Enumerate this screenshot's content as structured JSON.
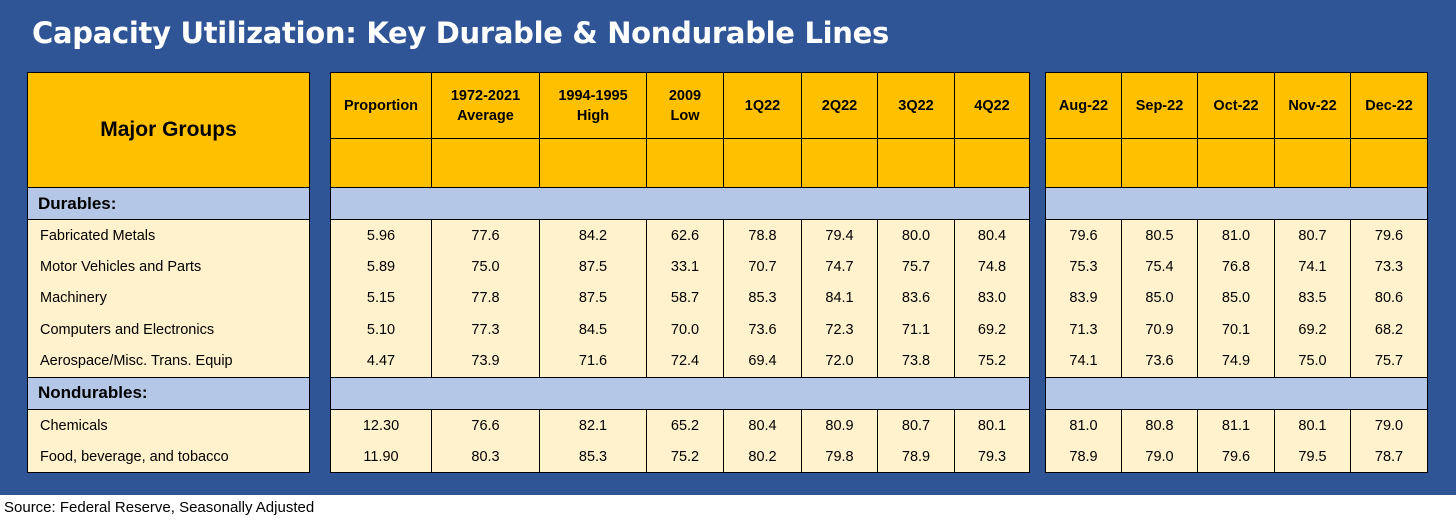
{
  "title": "Capacity Utilization: Key Durable & Nondurable Lines",
  "source": "Source: Federal Reserve, Seasonally Adjusted",
  "colors": {
    "panel_background": "#2F5597",
    "header_fill": "#FFC000",
    "section_fill": "#B4C7E7",
    "row_fill": "#FFF2CC"
  },
  "table": {
    "corner_label": "Major Groups",
    "columns": [
      {
        "line1": "Proportion",
        "line2": ""
      },
      {
        "line1": "1972-2021",
        "line2": "Average"
      },
      {
        "line1": "1994-1995",
        "line2": "High"
      },
      {
        "line1": "2009",
        "line2": "Low"
      },
      {
        "line1": "1Q22",
        "line2": ""
      },
      {
        "line1": "2Q22",
        "line2": ""
      },
      {
        "line1": "3Q22",
        "line2": ""
      },
      {
        "line1": "4Q22",
        "line2": ""
      },
      {
        "line1": "Aug-22",
        "line2": ""
      },
      {
        "line1": "Sep-22",
        "line2": ""
      },
      {
        "line1": "Oct-22",
        "line2": ""
      },
      {
        "line1": "Nov-22",
        "line2": ""
      },
      {
        "line1": "Dec-22",
        "line2": ""
      }
    ],
    "sections": [
      {
        "label": "Durables:",
        "rows": [
          {
            "name": "Fabricated Metals",
            "values": [
              "5.96",
              "77.6",
              "84.2",
              "62.6",
              "78.8",
              "79.4",
              "80.0",
              "80.4",
              "79.6",
              "80.5",
              "81.0",
              "80.7",
              "79.6"
            ]
          },
          {
            "name": "Motor Vehicles and Parts",
            "values": [
              "5.89",
              "75.0",
              "87.5",
              "33.1",
              "70.7",
              "74.7",
              "75.7",
              "74.8",
              "75.3",
              "75.4",
              "76.8",
              "74.1",
              "73.3"
            ]
          },
          {
            "name": "Machinery",
            "values": [
              "5.15",
              "77.8",
              "87.5",
              "58.7",
              "85.3",
              "84.1",
              "83.6",
              "83.0",
              "83.9",
              "85.0",
              "85.0",
              "83.5",
              "80.6"
            ]
          },
          {
            "name": "Computers and Electronics",
            "values": [
              "5.10",
              "77.3",
              "84.5",
              "70.0",
              "73.6",
              "72.3",
              "71.1",
              "69.2",
              "71.3",
              "70.9",
              "70.1",
              "69.2",
              "68.2"
            ]
          },
          {
            "name": "Aerospace/Misc. Trans. Equip",
            "values": [
              "4.47",
              "73.9",
              "71.6",
              "72.4",
              "69.4",
              "72.0",
              "73.8",
              "75.2",
              "74.1",
              "73.6",
              "74.9",
              "75.0",
              "75.7"
            ]
          }
        ]
      },
      {
        "label": "Nondurables:",
        "rows": [
          {
            "name": "Chemicals",
            "values": [
              "12.30",
              "76.6",
              "82.1",
              "65.2",
              "80.4",
              "80.9",
              "80.7",
              "80.1",
              "81.0",
              "80.8",
              "81.1",
              "80.1",
              "79.0"
            ]
          },
          {
            "name": "Food, beverage, and tobacco",
            "values": [
              "11.90",
              "80.3",
              "85.3",
              "75.2",
              "80.2",
              "79.8",
              "78.9",
              "79.3",
              "78.9",
              "79.0",
              "79.6",
              "79.5",
              "78.7"
            ]
          }
        ]
      }
    ]
  }
}
